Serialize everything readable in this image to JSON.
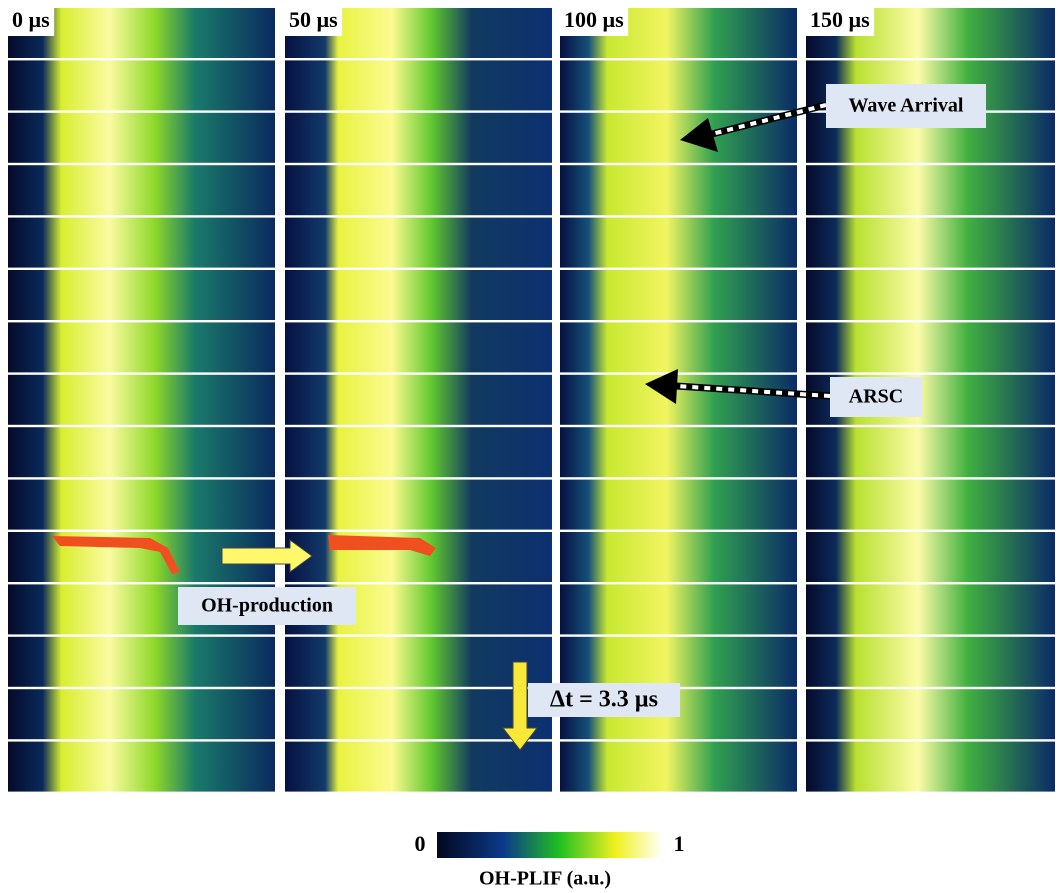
{
  "columns": [
    {
      "label": "0 µs"
    },
    {
      "label": "50 µs"
    },
    {
      "label": "100 µs"
    },
    {
      "label": "150 µs"
    }
  ],
  "annotations": {
    "wave_arrival": "Wave Arrival",
    "arsc": "ARSC",
    "oh_production": "OH-production",
    "time_step": "Δt = 3.3 µs"
  },
  "colorbar": {
    "min_label": 0,
    "max_label": 1,
    "title": "OH-PLIF (a.u.)"
  }
}
